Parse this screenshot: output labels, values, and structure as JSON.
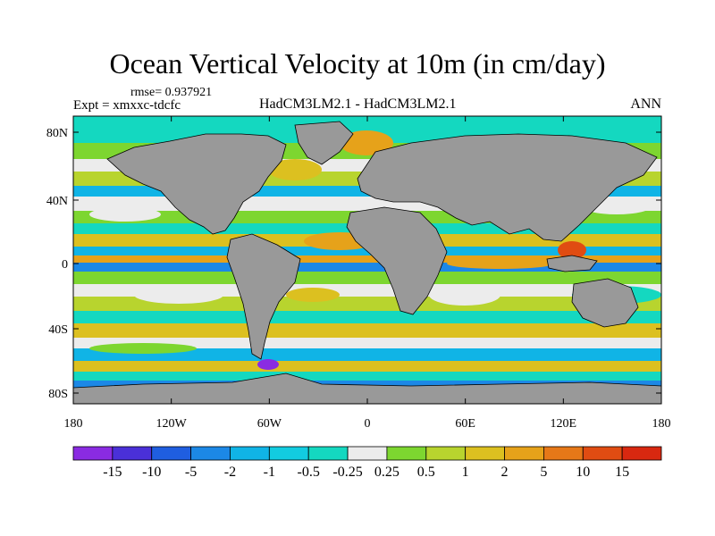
{
  "title": "Ocean Vertical Velocity at 10m (in cm/day)",
  "rmse_label": "rmse= 0.937921",
  "expt_label": "Expt = xmxxc-tdcfc",
  "model_label": "HadCM3LM2.1 - HadCM3LM2.1",
  "season_label": "ANN",
  "lat_ticks": [
    "80N",
    "40N",
    "0",
    "40S",
    "80S"
  ],
  "lon_ticks": [
    "180",
    "120W",
    "60W",
    "0",
    "60E",
    "120E",
    "180"
  ],
  "colorbar": {
    "labels": [
      "-15",
      "-10",
      "-5",
      "-2",
      "-1",
      "-0.5",
      "-0.25",
      "0.25",
      "0.5",
      "1",
      "2",
      "5",
      "10",
      "15"
    ],
    "colors": [
      "#8a2be2",
      "#4a30d8",
      "#1f5ee0",
      "#1c88e6",
      "#10b4e6",
      "#12cce0",
      "#14d8c0",
      "#ececec",
      "#7dd630",
      "#b8d42e",
      "#dcc020",
      "#e6a21a",
      "#e67818",
      "#e04c12",
      "#d82810"
    ]
  },
  "land_color": "#999999",
  "icons": {
    "map": "world-map-projection"
  }
}
